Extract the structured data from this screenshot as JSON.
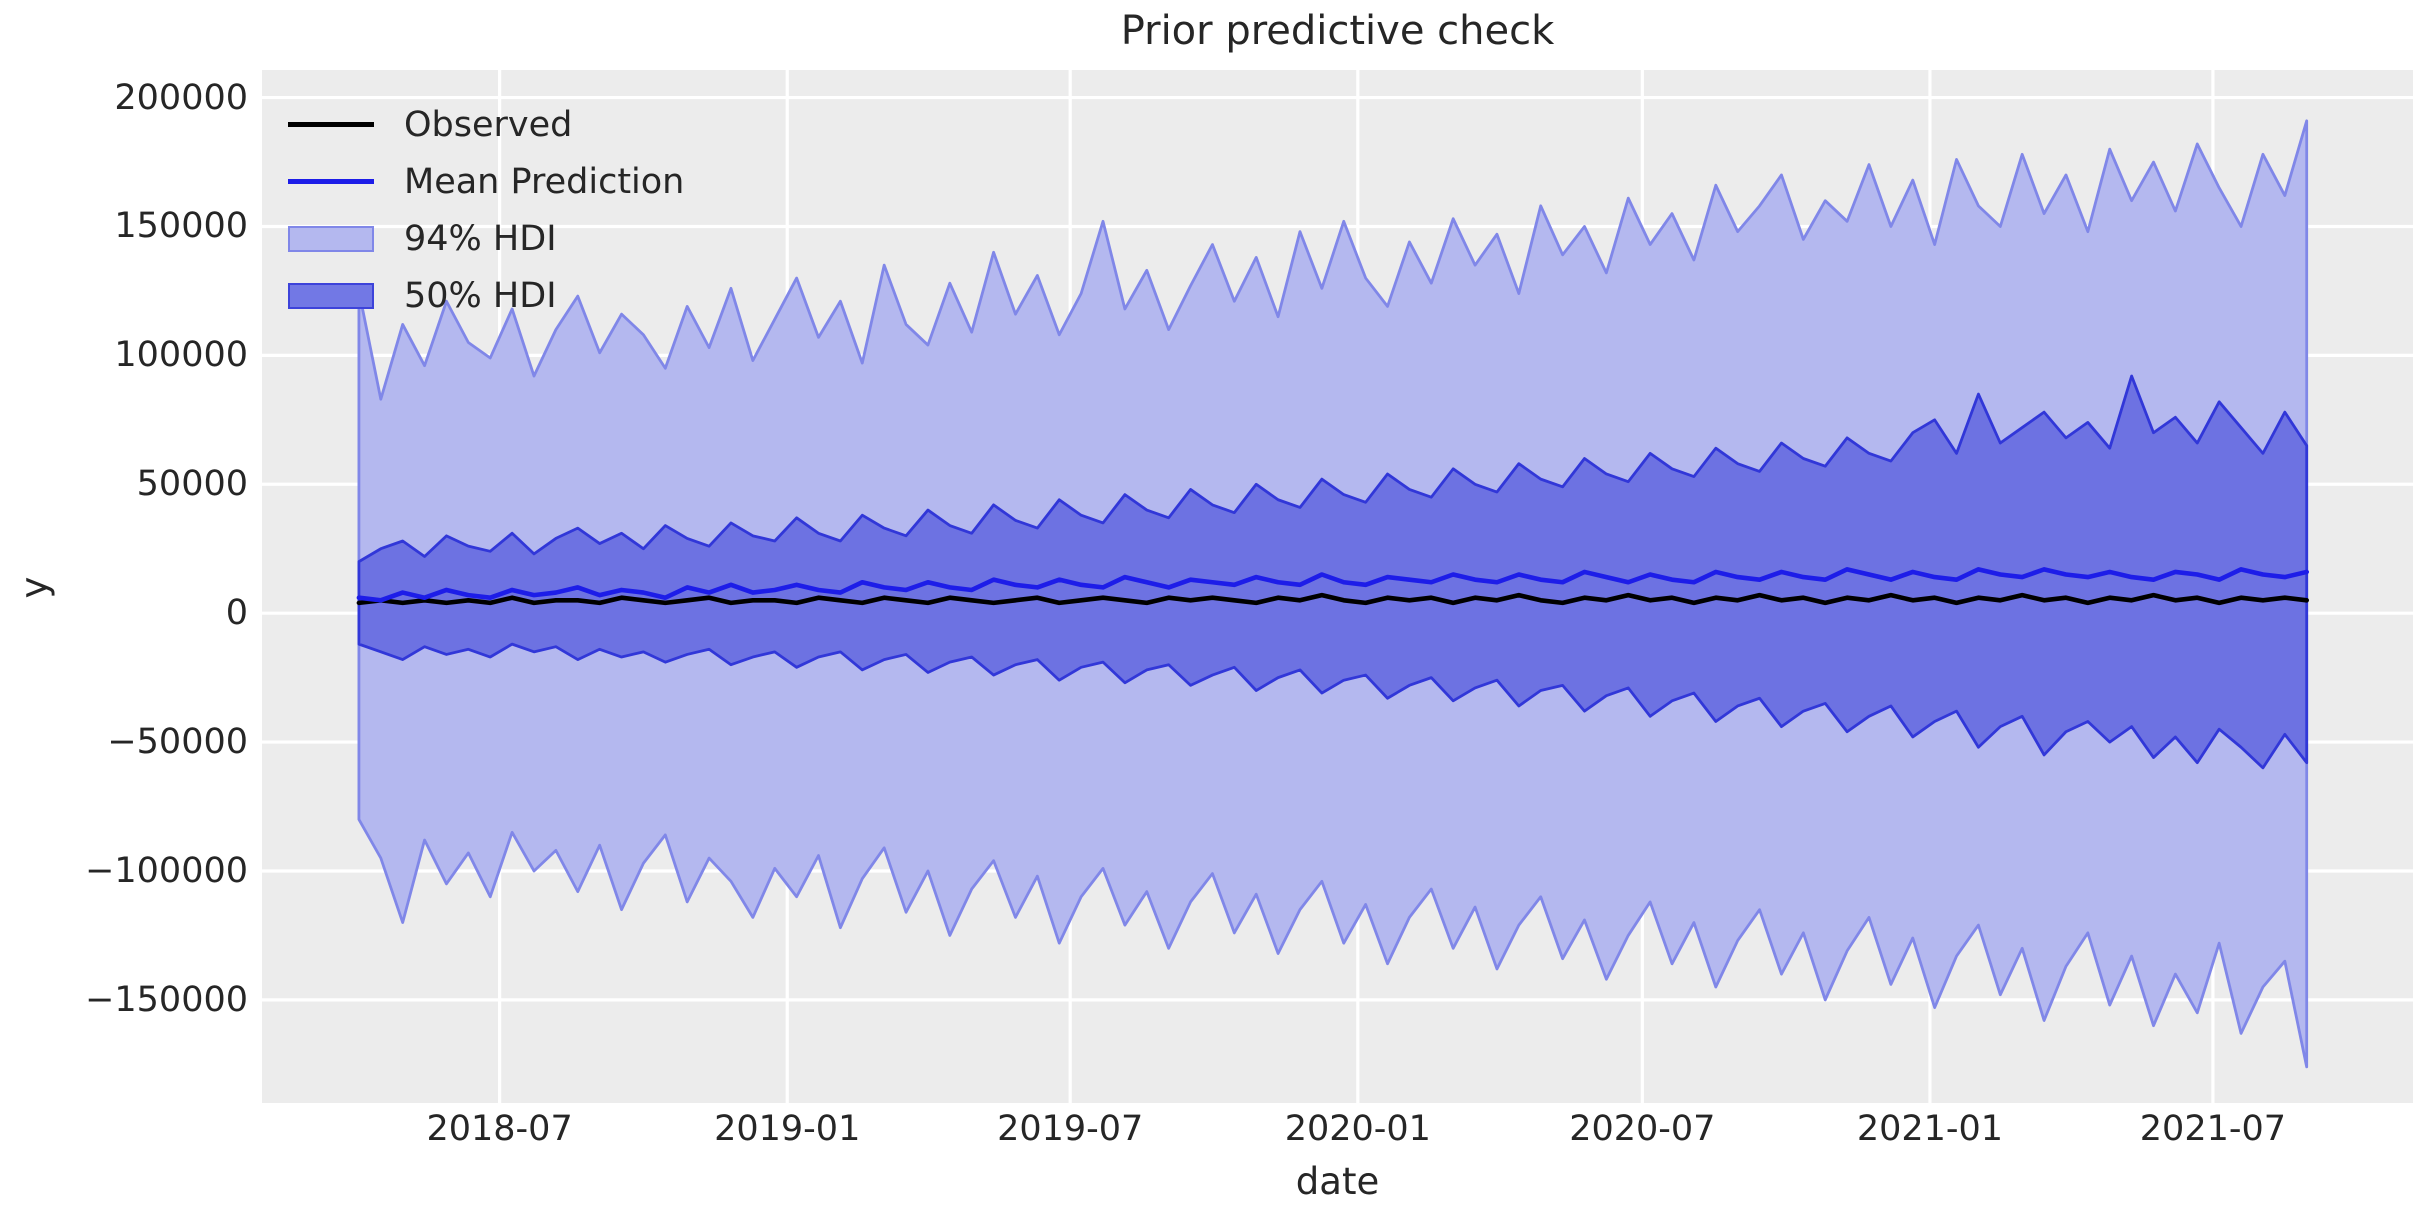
{
  "figure": {
    "title": "Prior predictive check",
    "background_color": "#ffffff",
    "text_color": "#262626"
  },
  "legend": {
    "items": [
      {
        "label": "Observed",
        "type": "line",
        "color": "#000000"
      },
      {
        "label": "Mean Prediction",
        "type": "line",
        "color": "#1d1de8"
      },
      {
        "label": "94% HDI",
        "type": "patch",
        "fill": "#b4b8ef",
        "edge": "#8087e8"
      },
      {
        "label": "50% HDI",
        "type": "patch",
        "fill": "#7278e5",
        "edge": "#3d43da"
      }
    ]
  },
  "chart_data": {
    "type": "area",
    "title": "Prior predictive check",
    "xlabel": "date",
    "ylabel": "y",
    "plot_background": "#ececec",
    "grid_color": "#ffffff",
    "grid_on": true,
    "legend_position": "upper left",
    "x_axis": {
      "min": "2018-01-30",
      "max": "2021-11-06",
      "ticks": [
        {
          "date": "2018-07-01",
          "label": "2018-07"
        },
        {
          "date": "2019-01-01",
          "label": "2019-01"
        },
        {
          "date": "2019-07-01",
          "label": "2019-07"
        },
        {
          "date": "2020-01-01",
          "label": "2020-01"
        },
        {
          "date": "2020-07-01",
          "label": "2020-07"
        },
        {
          "date": "2021-01-01",
          "label": "2021-01"
        },
        {
          "date": "2021-07-01",
          "label": "2021-07"
        }
      ]
    },
    "y_axis": {
      "min": -190000,
      "max": 210700,
      "ticks": [
        {
          "value": 200000,
          "label": "200000"
        },
        {
          "value": 150000,
          "label": "150000"
        },
        {
          "value": 100000,
          "label": "100000"
        },
        {
          "value": 50000,
          "label": "50000"
        },
        {
          "value": 0,
          "label": "0"
        },
        {
          "value": -50000,
          "label": "−50000"
        },
        {
          "value": -100000,
          "label": "−100000"
        },
        {
          "value": -150000,
          "label": "−150000"
        }
      ]
    },
    "x_start": "2018-04-02",
    "x_step_days": 14,
    "bands": [
      {
        "name": "94% HDI",
        "fill": "#b2b6ee",
        "edge": "#8087e8",
        "upper": [
          125000,
          83000,
          112000,
          96000,
          121000,
          105000,
          99000,
          118000,
          92000,
          110000,
          123000,
          101000,
          116000,
          108000,
          95000,
          119000,
          103000,
          126000,
          98000,
          114000,
          130000,
          107000,
          121000,
          97000,
          135000,
          112000,
          104000,
          128000,
          109000,
          140000,
          116000,
          131000,
          108000,
          124000,
          152000,
          118000,
          133000,
          110000,
          127000,
          143000,
          121000,
          138000,
          115000,
          148000,
          126000,
          152000,
          130000,
          119000,
          144000,
          128000,
          153000,
          135000,
          147000,
          124000,
          158000,
          139000,
          150000,
          132000,
          161000,
          143000,
          155000,
          137000,
          166000,
          148000,
          158000,
          170000,
          145000,
          160000,
          152000,
          174000,
          150000,
          168000,
          143000,
          176000,
          158000,
          150000,
          178000,
          155000,
          170000,
          148000,
          180000,
          160000,
          175000,
          156000,
          182000,
          165000,
          150000,
          178000,
          162000,
          191000
        ],
        "lower": [
          -80000,
          -95000,
          -120000,
          -88000,
          -105000,
          -93000,
          -110000,
          -85000,
          -100000,
          -92000,
          -108000,
          -90000,
          -115000,
          -97000,
          -86000,
          -112000,
          -95000,
          -104000,
          -118000,
          -99000,
          -110000,
          -94000,
          -122000,
          -103000,
          -91000,
          -116000,
          -100000,
          -125000,
          -107000,
          -96000,
          -118000,
          -102000,
          -128000,
          -110000,
          -99000,
          -121000,
          -108000,
          -130000,
          -112000,
          -101000,
          -124000,
          -109000,
          -132000,
          -115000,
          -104000,
          -128000,
          -113000,
          -136000,
          -118000,
          -107000,
          -130000,
          -114000,
          -138000,
          -121000,
          -110000,
          -134000,
          -119000,
          -142000,
          -125000,
          -112000,
          -136000,
          -120000,
          -145000,
          -127000,
          -115000,
          -140000,
          -124000,
          -150000,
          -131000,
          -118000,
          -144000,
          -126000,
          -153000,
          -133000,
          -121000,
          -148000,
          -130000,
          -158000,
          -137000,
          -124000,
          -152000,
          -133000,
          -160000,
          -140000,
          -155000,
          -128000,
          -163000,
          -145000,
          -135000,
          -176000
        ]
      },
      {
        "name": "50% HDI",
        "fill": "#6a6fe1",
        "edge": "#3137d8",
        "upper": [
          20000,
          25000,
          28000,
          22000,
          30000,
          26000,
          24000,
          31000,
          23000,
          29000,
          33000,
          27000,
          31000,
          25000,
          34000,
          29000,
          26000,
          35000,
          30000,
          28000,
          37000,
          31000,
          28000,
          38000,
          33000,
          30000,
          40000,
          34000,
          31000,
          42000,
          36000,
          33000,
          44000,
          38000,
          35000,
          46000,
          40000,
          37000,
          48000,
          42000,
          39000,
          50000,
          44000,
          41000,
          52000,
          46000,
          43000,
          54000,
          48000,
          45000,
          56000,
          50000,
          47000,
          58000,
          52000,
          49000,
          60000,
          54000,
          51000,
          62000,
          56000,
          53000,
          64000,
          58000,
          55000,
          66000,
          60000,
          57000,
          68000,
          62000,
          59000,
          70000,
          75000,
          62000,
          85000,
          66000,
          72000,
          78000,
          68000,
          74000,
          64000,
          92000,
          70000,
          76000,
          66000,
          82000,
          72000,
          62000,
          78000,
          65000
        ],
        "lower": [
          -12000,
          -15000,
          -18000,
          -13000,
          -16000,
          -14000,
          -17000,
          -12000,
          -15000,
          -13000,
          -18000,
          -14000,
          -17000,
          -15000,
          -19000,
          -16000,
          -14000,
          -20000,
          -17000,
          -15000,
          -21000,
          -17000,
          -15000,
          -22000,
          -18000,
          -16000,
          -23000,
          -19000,
          -17000,
          -24000,
          -20000,
          -18000,
          -26000,
          -21000,
          -19000,
          -27000,
          -22000,
          -20000,
          -28000,
          -24000,
          -21000,
          -30000,
          -25000,
          -22000,
          -31000,
          -26000,
          -24000,
          -33000,
          -28000,
          -25000,
          -34000,
          -29000,
          -26000,
          -36000,
          -30000,
          -28000,
          -38000,
          -32000,
          -29000,
          -40000,
          -34000,
          -31000,
          -42000,
          -36000,
          -33000,
          -44000,
          -38000,
          -35000,
          -46000,
          -40000,
          -36000,
          -48000,
          -42000,
          -38000,
          -52000,
          -44000,
          -40000,
          -55000,
          -46000,
          -42000,
          -50000,
          -44000,
          -56000,
          -48000,
          -58000,
          -45000,
          -52000,
          -60000,
          -47000,
          -58000
        ]
      }
    ],
    "lines": [
      {
        "name": "Observed",
        "color": "#000000",
        "values": [
          4000,
          5000,
          4000,
          5000,
          4000,
          5000,
          4000,
          6000,
          4000,
          5000,
          5000,
          4000,
          6000,
          5000,
          4000,
          5000,
          6000,
          4000,
          5000,
          5000,
          4000,
          6000,
          5000,
          4000,
          6000,
          5000,
          4000,
          6000,
          5000,
          4000,
          5000,
          6000,
          4000,
          5000,
          6000,
          5000,
          4000,
          6000,
          5000,
          6000,
          5000,
          4000,
          6000,
          5000,
          7000,
          5000,
          4000,
          6000,
          5000,
          6000,
          4000,
          6000,
          5000,
          7000,
          5000,
          4000,
          6000,
          5000,
          7000,
          5000,
          6000,
          4000,
          6000,
          5000,
          7000,
          5000,
          6000,
          4000,
          6000,
          5000,
          7000,
          5000,
          6000,
          4000,
          6000,
          5000,
          7000,
          5000,
          6000,
          4000,
          6000,
          5000,
          7000,
          5000,
          6000,
          4000,
          6000,
          5000,
          6000,
          5000
        ]
      },
      {
        "name": "Mean Prediction",
        "color": "#1d1de8",
        "values": [
          6000,
          5000,
          8000,
          6000,
          9000,
          7000,
          6000,
          9000,
          7000,
          8000,
          10000,
          7000,
          9000,
          8000,
          6000,
          10000,
          8000,
          11000,
          8000,
          9000,
          11000,
          9000,
          8000,
          12000,
          10000,
          9000,
          12000,
          10000,
          9000,
          13000,
          11000,
          10000,
          13000,
          11000,
          10000,
          14000,
          12000,
          10000,
          13000,
          12000,
          11000,
          14000,
          12000,
          11000,
          15000,
          12000,
          11000,
          14000,
          13000,
          12000,
          15000,
          13000,
          12000,
          15000,
          13000,
          12000,
          16000,
          14000,
          12000,
          15000,
          13000,
          12000,
          16000,
          14000,
          13000,
          16000,
          14000,
          13000,
          17000,
          15000,
          13000,
          16000,
          14000,
          13000,
          17000,
          15000,
          14000,
          17000,
          15000,
          14000,
          16000,
          14000,
          13000,
          16000,
          15000,
          13000,
          17000,
          15000,
          14000,
          16000
        ]
      }
    ]
  }
}
